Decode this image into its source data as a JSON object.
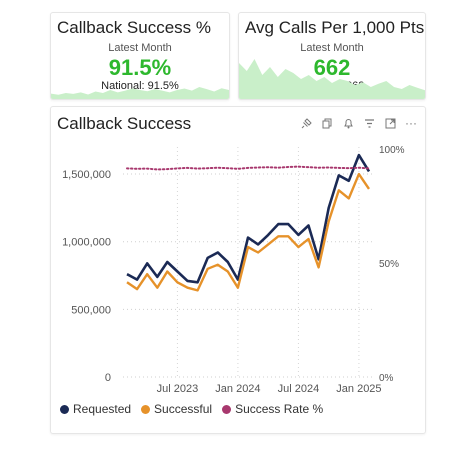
{
  "kpi_cards": [
    {
      "title": "Callback Success %",
      "subtitle": "Latest Month",
      "value": "91.5%",
      "national": "National: 91.5%"
    },
    {
      "title": "Avg Calls Per 1,000 Pts",
      "subtitle": "Latest Month",
      "value": "662",
      "national": "National: 662"
    }
  ],
  "main_chart": {
    "title": "Callback Success",
    "toolbar": [
      "pin-icon",
      "copy-icon",
      "bell-icon",
      "filter-icon",
      "expand-icon",
      "more-icon"
    ]
  },
  "colors": {
    "requested": "#1b2a55",
    "successful": "#e6922a",
    "rate": "#a8386e",
    "kpi_green": "#2eb82e",
    "spark_fill": "#c9efc9"
  },
  "chart_data": {
    "type": "line",
    "x": [
      "2023-02",
      "2023-03",
      "2023-04",
      "2023-05",
      "2023-06",
      "2023-07",
      "2023-08",
      "2023-09",
      "2023-10",
      "2023-11",
      "2023-12",
      "2024-01",
      "2024-02",
      "2024-03",
      "2024-04",
      "2024-05",
      "2024-06",
      "2024-07",
      "2024-08",
      "2024-09",
      "2024-10",
      "2024-11",
      "2024-12",
      "2025-01",
      "2025-02"
    ],
    "x_tick_labels": [
      "Jul 2023",
      "Jan 2024",
      "Jul 2024",
      "Jan 2025"
    ],
    "y_left_ticks": [
      "0",
      "500,000",
      "1,000,000",
      "1,500,000"
    ],
    "y_right_ticks": [
      "0%",
      "50%",
      "100%"
    ],
    "y_left_range": [
      0,
      1700000
    ],
    "y_right_range": [
      0,
      1.0
    ],
    "series": [
      {
        "name": "Requested",
        "axis": "left",
        "values": [
          760000,
          720000,
          840000,
          740000,
          850000,
          780000,
          710000,
          700000,
          880000,
          920000,
          850000,
          720000,
          1030000,
          980000,
          1050000,
          1130000,
          1130000,
          1050000,
          1120000,
          870000,
          1250000,
          1490000,
          1450000,
          1640000,
          1520000
        ]
      },
      {
        "name": "Successful",
        "axis": "left",
        "values": [
          700000,
          650000,
          760000,
          660000,
          780000,
          700000,
          660000,
          640000,
          800000,
          830000,
          780000,
          660000,
          960000,
          920000,
          980000,
          1040000,
          1040000,
          960000,
          1020000,
          810000,
          1150000,
          1380000,
          1320000,
          1500000,
          1390000
        ]
      },
      {
        "name": "Success Rate %",
        "axis": "right",
        "values": [
          0.915,
          0.913,
          0.914,
          0.91,
          0.912,
          0.915,
          0.917,
          0.914,
          0.916,
          0.918,
          0.916,
          0.913,
          0.917,
          0.919,
          0.92,
          0.918,
          0.921,
          0.923,
          0.92,
          0.918,
          0.919,
          0.917,
          0.916,
          0.918,
          0.915
        ]
      }
    ],
    "legend": [
      "Requested",
      "Successful",
      "Success Rate %"
    ],
    "legend_position": "bottom",
    "grid": "dotted"
  },
  "sparklines": {
    "callback": [
      0.18,
      0.14,
      0.2,
      0.17,
      0.22,
      0.15,
      0.25,
      0.2,
      0.3,
      0.22,
      0.28,
      0.35,
      0.3,
      0.26,
      0.33,
      0.28,
      0.22,
      0.3,
      0.35,
      0.28,
      0.4,
      0.33,
      0.25,
      0.36,
      0.3
    ],
    "calls": [
      0.9,
      0.7,
      1.0,
      0.6,
      0.8,
      0.55,
      0.75,
      0.65,
      0.5,
      0.6,
      0.45,
      0.55,
      0.4,
      0.5,
      0.45,
      0.35,
      0.42,
      0.3,
      0.38,
      0.45,
      0.3,
      0.25,
      0.35,
      0.28,
      0.22
    ]
  }
}
